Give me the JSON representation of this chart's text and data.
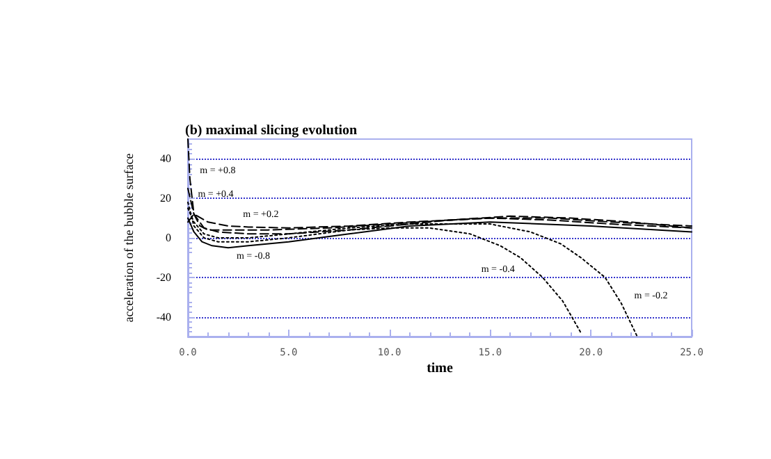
{
  "chart_data": {
    "type": "line",
    "title": "(b) maximal slicing evolution",
    "xlabel": "time",
    "ylabel": "acceleration of the bubble surface",
    "xlim": [
      0,
      25
    ],
    "ylim": [
      -50,
      50
    ],
    "xticks": [
      {
        "value": 0,
        "label": "0.0"
      },
      {
        "value": 5,
        "label": "5.0"
      },
      {
        "value": 10,
        "label": "10.0"
      },
      {
        "value": 15,
        "label": "15.0"
      },
      {
        "value": 20,
        "label": "20.0"
      },
      {
        "value": 25,
        "label": "25.0"
      }
    ],
    "yticks": [
      -40,
      -20,
      0,
      20,
      40
    ],
    "grid": "y",
    "marker": "none",
    "legend": false,
    "series": [
      {
        "name": "m = +0.2",
        "color": "#000000",
        "line_style": "dashed",
        "x": [
          0,
          0.3,
          1,
          2,
          3,
          5,
          8,
          11,
          13,
          16,
          19,
          22,
          25
        ],
        "values": [
          8,
          12,
          8,
          6,
          5.5,
          5,
          6,
          8,
          9,
          11,
          10,
          8,
          5
        ]
      },
      {
        "name": "m = +0.4",
        "color": "#000000",
        "line_style": "dashed",
        "x": [
          0,
          0.3,
          0.8,
          1.5,
          3,
          5,
          8,
          11,
          13,
          15,
          18,
          21,
          25
        ],
        "values": [
          25,
          12,
          5,
          3,
          2,
          2,
          4,
          7,
          9,
          10,
          9,
          7,
          5
        ]
      },
      {
        "name": "m = +0.8",
        "color": "#000000",
        "line_style": "dashed",
        "x": [
          0,
          0.1,
          0.3,
          0.6,
          1,
          2,
          4,
          7,
          10,
          13,
          15,
          18,
          21,
          25
        ],
        "values": [
          50,
          30,
          12,
          6,
          4,
          4,
          4,
          5,
          7,
          9,
          10,
          10,
          8,
          6
        ]
      },
      {
        "name": "m = -0.8",
        "color": "#000000",
        "line_style": "solid",
        "x": [
          0,
          0.3,
          0.7,
          1.2,
          2,
          3,
          5,
          8,
          11,
          15,
          20,
          25
        ],
        "values": [
          10,
          3,
          -2,
          -4,
          -5,
          -4,
          -2,
          2,
          6,
          8,
          6,
          3
        ]
      },
      {
        "name": "m = -0.4",
        "color": "#000000",
        "line_style": "dotted",
        "x": [
          0,
          0.3,
          0.8,
          1.5,
          3,
          5,
          8,
          10,
          12,
          14,
          15.5,
          16.5,
          17.6,
          18.6,
          19.5
        ],
        "values": [
          18,
          6,
          0,
          -2,
          -2,
          0,
          4,
          5,
          5,
          2,
          -4,
          -10,
          -20,
          -32,
          -48
        ]
      },
      {
        "name": "m = -0.2",
        "color": "#000000",
        "line_style": "dotted",
        "x": [
          0,
          0.3,
          0.8,
          1.5,
          3,
          5,
          8,
          11,
          13,
          15,
          17,
          18.5,
          19.5,
          20.7,
          21.5,
          22.3
        ],
        "values": [
          15,
          8,
          2,
          0,
          0,
          2,
          5,
          7,
          7,
          7,
          3,
          -3,
          -10,
          -20,
          -33,
          -50
        ]
      }
    ]
  }
}
